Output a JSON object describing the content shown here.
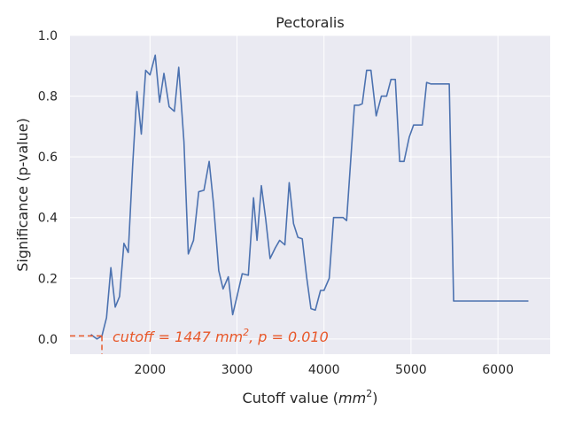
{
  "chart_data": {
    "type": "line",
    "title": "Pectoralis",
    "xlabel_text": "Cutoff value (",
    "xlabel_math": "mm",
    "xlabel_sup": "2",
    "xlabel_close": ")",
    "ylabel": "Significance (p-value)",
    "xlim": [
      1080,
      6600
    ],
    "ylim": [
      -0.05,
      1.0
    ],
    "xticks": [
      2000,
      3000,
      4000,
      5000,
      6000
    ],
    "yticks": [
      0.0,
      0.2,
      0.4,
      0.6,
      0.8,
      1.0
    ],
    "xtick_labels": [
      "2000",
      "3000",
      "4000",
      "5000",
      "6000"
    ],
    "ytick_labels": [
      "0.0",
      "0.2",
      "0.4",
      "0.6",
      "0.8",
      "1.0"
    ],
    "grid": true,
    "line_color": "#4c72b0",
    "annotation_color": "#e8582a",
    "background_color": "#eaeaf2",
    "cutoff": {
      "x": 1447,
      "y": 0.01
    },
    "annotation": {
      "part1": "cutoff = 1447 ",
      "math": "mm",
      "sup": "2",
      "part2": ", p = 0.010"
    },
    "series": [
      {
        "x": [
          1320,
          1390,
          1447,
          1500,
          1550,
          1600,
          1650,
          1700,
          1750,
          1800,
          1850,
          1900,
          1950,
          2000,
          2060,
          2110,
          2160,
          2220,
          2280,
          2330,
          2390,
          2440,
          2500,
          2560,
          2620,
          2680,
          2730,
          2790,
          2840,
          2900,
          2950,
          3000,
          3060,
          3130,
          3190,
          3230,
          3280,
          3330,
          3380,
          3440,
          3490,
          3550,
          3600,
          3650,
          3700,
          3750,
          3800,
          3850,
          3900,
          3960,
          4000,
          4060,
          4110,
          4160,
          4220,
          4260,
          4350,
          4400,
          4440,
          4490,
          4540,
          4600,
          4660,
          4720,
          4770,
          4820,
          4870,
          4920,
          4980,
          5030,
          5080,
          5130,
          5180,
          5230,
          5300,
          5370,
          5440,
          5490,
          5540,
          5600,
          5640,
          5680,
          5760,
          5900,
          6100,
          6350
        ],
        "y": [
          0.015,
          0.0,
          0.01,
          0.07,
          0.235,
          0.105,
          0.14,
          0.315,
          0.285,
          0.57,
          0.815,
          0.675,
          0.885,
          0.87,
          0.935,
          0.78,
          0.875,
          0.765,
          0.75,
          0.895,
          0.65,
          0.28,
          0.325,
          0.485,
          0.49,
          0.585,
          0.445,
          0.225,
          0.165,
          0.205,
          0.08,
          0.14,
          0.215,
          0.21,
          0.465,
          0.325,
          0.505,
          0.395,
          0.265,
          0.3,
          0.325,
          0.31,
          0.515,
          0.38,
          0.335,
          0.33,
          0.205,
          0.1,
          0.095,
          0.16,
          0.16,
          0.2,
          0.4,
          0.4,
          0.4,
          0.39,
          0.77,
          0.77,
          0.775,
          0.885,
          0.885,
          0.735,
          0.8,
          0.8,
          0.855,
          0.855,
          0.585,
          0.585,
          0.665,
          0.705,
          0.705,
          0.705,
          0.845,
          0.84,
          0.84,
          0.84,
          0.84,
          0.125,
          0.125,
          0.125,
          0.125,
          0.125,
          0.125,
          0.125,
          0.125,
          0.125
        ]
      }
    ]
  }
}
